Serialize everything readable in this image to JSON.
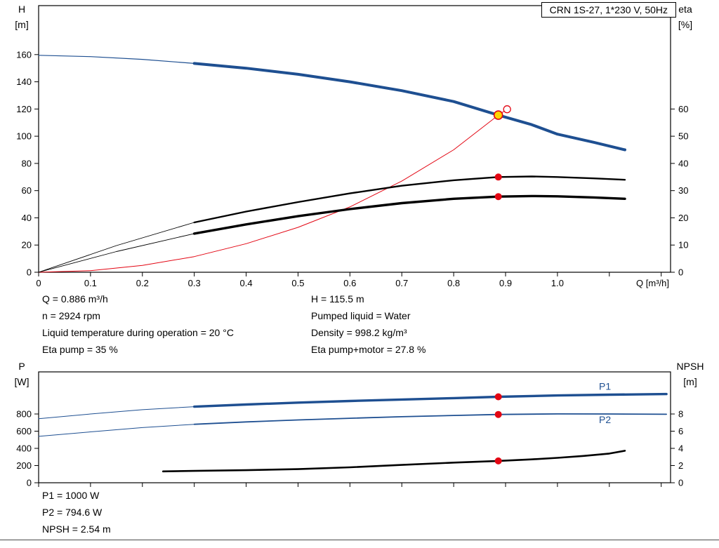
{
  "chart_data": [
    {
      "id": "top",
      "type": "line",
      "title": "CRN 1S-27, 1*230 V, 50Hz",
      "x_axis": {
        "label": "Q [m³/h]",
        "range": [
          0,
          1.218
        ],
        "ticks": [
          0,
          0.1,
          0.2,
          0.3,
          0.4,
          0.5,
          0.6,
          0.7,
          0.8,
          0.9,
          1.0,
          1.1,
          1.2
        ],
        "tick_labels": [
          "0",
          "0.1",
          "0.2",
          "0.3",
          "0.4",
          "0.5",
          "0.6",
          "0.7",
          "0.8",
          "0.9",
          "1.0",
          "",
          ""
        ]
      },
      "left_axis": {
        "label": [
          "H",
          "[m]"
        ],
        "range": [
          0,
          196
        ],
        "ticks": [
          0,
          20,
          40,
          60,
          80,
          100,
          120,
          140,
          160
        ]
      },
      "right_axis": {
        "label": [
          "eta",
          "[%]"
        ],
        "range": [
          0,
          98
        ],
        "ticks": [
          0,
          10,
          20,
          30,
          40,
          50,
          60
        ]
      },
      "series": [
        {
          "name": "head-curve-lead",
          "axis": "left",
          "color": "#1e4f91",
          "width": 1.2,
          "points": [
            [
              0,
              159.5
            ],
            [
              0.1,
              158.5
            ],
            [
              0.2,
              156.5
            ],
            [
              0.3,
              153.5
            ]
          ]
        },
        {
          "name": "head-curve",
          "axis": "left",
          "color": "#1e4f91",
          "width": 4,
          "points": [
            [
              0.3,
              153.5
            ],
            [
              0.4,
              150
            ],
            [
              0.5,
              145.5
            ],
            [
              0.6,
              140
            ],
            [
              0.7,
              133.5
            ],
            [
              0.8,
              125.5
            ],
            [
              0.886,
              115.5
            ],
            [
              0.95,
              108.5
            ],
            [
              1.0,
              101.5
            ],
            [
              1.07,
              95.5
            ],
            [
              1.13,
              90
            ]
          ]
        },
        {
          "name": "system-curve",
          "axis": "left",
          "color": "#e30613",
          "width": 1,
          "points": [
            [
              0,
              0
            ],
            [
              0.1,
              1.2
            ],
            [
              0.2,
              5
            ],
            [
              0.3,
              11.5
            ],
            [
              0.4,
              21
            ],
            [
              0.5,
              33
            ],
            [
              0.6,
              48
            ],
            [
              0.7,
              67
            ],
            [
              0.8,
              90
            ],
            [
              0.886,
              115.5
            ],
            [
              0.903,
              119.8
            ]
          ]
        },
        {
          "name": "eta-pump-lead",
          "axis": "right",
          "color": "#000000",
          "width": 0.9,
          "points": [
            [
              0,
              0
            ],
            [
              0.15,
              9.8
            ],
            [
              0.3,
              18.3
            ]
          ]
        },
        {
          "name": "eta-pump-curve",
          "axis": "right",
          "color": "#000000",
          "width": 2.4,
          "points": [
            [
              0.3,
              18.3
            ],
            [
              0.4,
              22.3
            ],
            [
              0.5,
              25.8
            ],
            [
              0.6,
              29
            ],
            [
              0.7,
              31.8
            ],
            [
              0.8,
              33.8
            ],
            [
              0.886,
              35
            ],
            [
              0.95,
              35.2
            ],
            [
              1.0,
              35
            ],
            [
              1.07,
              34.5
            ],
            [
              1.13,
              34
            ]
          ]
        },
        {
          "name": "eta-pump-motor-lead",
          "axis": "right",
          "color": "#000000",
          "width": 0.9,
          "points": [
            [
              0,
              0
            ],
            [
              0.15,
              7.6
            ],
            [
              0.3,
              14.2
            ]
          ]
        },
        {
          "name": "eta-pump-motor-curve",
          "axis": "right",
          "color": "#000000",
          "width": 3.4,
          "points": [
            [
              0.3,
              14.2
            ],
            [
              0.4,
              17.6
            ],
            [
              0.5,
              20.6
            ],
            [
              0.6,
              23.2
            ],
            [
              0.7,
              25.4
            ],
            [
              0.8,
              27
            ],
            [
              0.886,
              27.8
            ],
            [
              0.95,
              28
            ],
            [
              1.0,
              27.9
            ],
            [
              1.07,
              27.5
            ],
            [
              1.13,
              27
            ]
          ]
        }
      ],
      "markers": [
        {
          "type": "ring",
          "axis": "left",
          "q": 0.903,
          "v": 119.8,
          "r": 5,
          "color": "#e30613"
        },
        {
          "type": "dot",
          "axis": "right",
          "q": 0.886,
          "v": 35,
          "r": 5,
          "color": "#e30613"
        },
        {
          "type": "dot",
          "axis": "right",
          "q": 0.886,
          "v": 27.8,
          "r": 5,
          "color": "#e30613"
        },
        {
          "type": "op",
          "axis": "left",
          "q": 0.886,
          "v": 115.5,
          "r": 6,
          "fill": "#ffd500",
          "stroke": "#e30613"
        }
      ],
      "labels": []
    },
    {
      "id": "bottom",
      "type": "line",
      "x_axis": {
        "range": [
          0,
          1.218
        ],
        "ticks": [
          0,
          0.1,
          0.2,
          0.3,
          0.4,
          0.5,
          0.6,
          0.7,
          0.8,
          0.9,
          1.0,
          1.1,
          1.2
        ]
      },
      "left_axis": {
        "label": [
          "P",
          "[W]"
        ],
        "range": [
          0,
          1290
        ],
        "ticks": [
          0,
          200,
          400,
          600,
          800
        ]
      },
      "right_axis": {
        "label": [
          "NPSH",
          "[m]"
        ],
        "range": [
          0,
          12.9
        ],
        "ticks": [
          0,
          2,
          4,
          6,
          8
        ]
      },
      "series": [
        {
          "name": "p1-lead",
          "axis": "left",
          "color": "#1e4f91",
          "width": 1,
          "points": [
            [
              0,
              745
            ],
            [
              0.1,
              800
            ],
            [
              0.2,
              850
            ],
            [
              0.3,
              885
            ]
          ]
        },
        {
          "name": "p1-curve",
          "axis": "left",
          "color": "#1e4f91",
          "width": 3.4,
          "points": [
            [
              0.3,
              885
            ],
            [
              0.4,
              910
            ],
            [
              0.5,
              932
            ],
            [
              0.6,
              951
            ],
            [
              0.7,
              968
            ],
            [
              0.8,
              985
            ],
            [
              0.886,
              1000
            ],
            [
              1.0,
              1016
            ],
            [
              1.1,
              1025
            ],
            [
              1.21,
              1032
            ]
          ]
        },
        {
          "name": "p2-lead",
          "axis": "left",
          "color": "#1e4f91",
          "width": 1,
          "points": [
            [
              0,
              540
            ],
            [
              0.1,
              592
            ],
            [
              0.2,
              642
            ],
            [
              0.3,
              680
            ]
          ]
        },
        {
          "name": "p2-curve",
          "axis": "left",
          "color": "#1e4f91",
          "width": 1.8,
          "points": [
            [
              0.3,
              680
            ],
            [
              0.4,
              708
            ],
            [
              0.5,
              731
            ],
            [
              0.6,
              750
            ],
            [
              0.7,
              768
            ],
            [
              0.8,
              783
            ],
            [
              0.886,
              794.6
            ],
            [
              1.0,
              801
            ],
            [
              1.1,
              800
            ],
            [
              1.21,
              797
            ]
          ]
        },
        {
          "name": "npsh-curve",
          "axis": "right",
          "color": "#000000",
          "width": 2.6,
          "points": [
            [
              0.24,
              1.32
            ],
            [
              0.3,
              1.38
            ],
            [
              0.4,
              1.46
            ],
            [
              0.5,
              1.58
            ],
            [
              0.6,
              1.8
            ],
            [
              0.7,
              2.07
            ],
            [
              0.8,
              2.34
            ],
            [
              0.886,
              2.54
            ],
            [
              0.95,
              2.72
            ],
            [
              1.0,
              2.9
            ],
            [
              1.05,
              3.12
            ],
            [
              1.1,
              3.4
            ],
            [
              1.13,
              3.72
            ]
          ]
        }
      ],
      "markers": [
        {
          "type": "dot",
          "axis": "left",
          "q": 0.886,
          "v": 1000,
          "r": 5,
          "color": "#e30613"
        },
        {
          "type": "dot",
          "axis": "left",
          "q": 0.886,
          "v": 794.6,
          "r": 5,
          "color": "#e30613"
        },
        {
          "type": "dot",
          "axis": "right",
          "q": 0.886,
          "v": 2.54,
          "r": 5,
          "color": "#e30613"
        }
      ],
      "labels": [
        {
          "text": "P1",
          "axis": "left",
          "q": 1.08,
          "v": 1080,
          "color": "#1e4f91"
        },
        {
          "text": "P2",
          "axis": "left",
          "q": 1.08,
          "v": 695,
          "color": "#1e4f91"
        }
      ]
    }
  ],
  "annotations": {
    "left_column": [
      "Q = 0.886 m³/h",
      "n = 2924 rpm",
      "Liquid temperature during operation = 20 °C",
      "Eta pump = 35 %"
    ],
    "right_column": [
      "H = 115.5 m",
      "Pumped liquid = Water",
      "Density = 998.2 kg/m³",
      "Eta pump+motor = 27.8 %"
    ],
    "power_block": [
      "P1 = 1000 W",
      "P2 = 794.6 W",
      "NPSH = 2.54 m"
    ]
  }
}
